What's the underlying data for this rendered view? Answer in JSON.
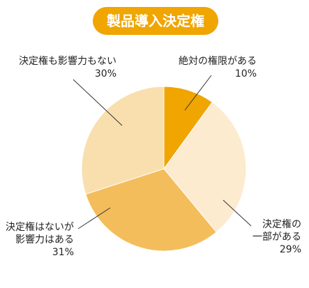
{
  "chart_data": {
    "type": "pie",
    "title": "製品導入決定権",
    "start": "12 o'clock, clockwise",
    "slices": [
      {
        "label_lines": [
          "絶対の権限がある",
          "10%"
        ],
        "value": 10,
        "color": "#f0a500"
      },
      {
        "label_lines": [
          "決定権の",
          "一部がある",
          "29%"
        ],
        "value": 29,
        "color": "#fdebd0"
      },
      {
        "label_lines": [
          "決定権はないが",
          "影響力はある",
          "31%"
        ],
        "value": 31,
        "color": "#f4bd5b"
      },
      {
        "label_lines": [
          "決定権も影響力もない",
          "30%"
        ],
        "value": 30,
        "color": "#f9dfad"
      }
    ]
  }
}
